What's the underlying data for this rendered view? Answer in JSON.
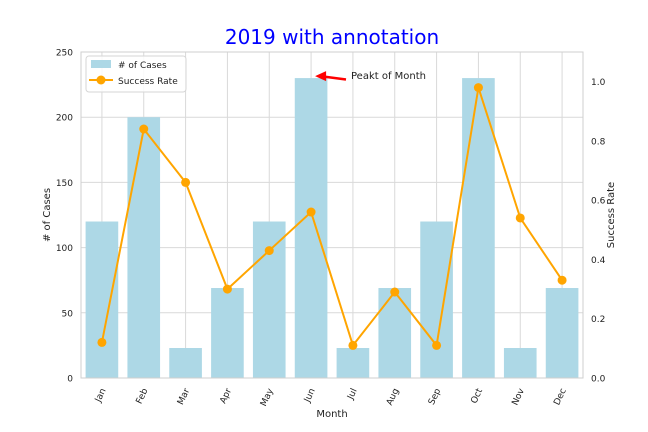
{
  "chart_data": {
    "type": "bar",
    "title": "2019 with annotation",
    "xlabel": "Month",
    "ylabel": "# of Cases",
    "y2label": "Success Rate",
    "categories": [
      "Jan",
      "Feb",
      "Mar",
      "Apr",
      "May",
      "Jun",
      "Jul",
      "Aug",
      "Sep",
      "Oct",
      "Nov",
      "Dec"
    ],
    "series": [
      {
        "name": "# of Cases",
        "type": "bar",
        "axis": "left",
        "values": [
          120,
          200,
          23,
          69,
          120,
          230,
          23,
          69,
          120,
          230,
          23,
          69
        ]
      },
      {
        "name": "Success Rate",
        "type": "line",
        "axis": "right",
        "values": [
          0.12,
          0.84,
          0.66,
          0.3,
          0.43,
          0.56,
          0.11,
          0.29,
          0.11,
          0.98,
          0.54,
          0.33
        ]
      }
    ],
    "ylim": [
      0,
      250
    ],
    "y2lim": [
      0,
      1.1
    ],
    "yticks": [
      0,
      50,
      100,
      150,
      200,
      250
    ],
    "y2ticks": [
      "0.0",
      "0.2",
      "0.4",
      "0.6",
      "0.8",
      "1.0"
    ],
    "annotation": {
      "text": "Peakt of Month",
      "target": {
        "category": "Jun",
        "value": 230
      }
    },
    "grid": true,
    "legend": "top-left",
    "colors": {
      "bar": "#add8e6",
      "line": "#ffa500",
      "title": "#0000ff",
      "arrow": "#ff0000"
    }
  }
}
